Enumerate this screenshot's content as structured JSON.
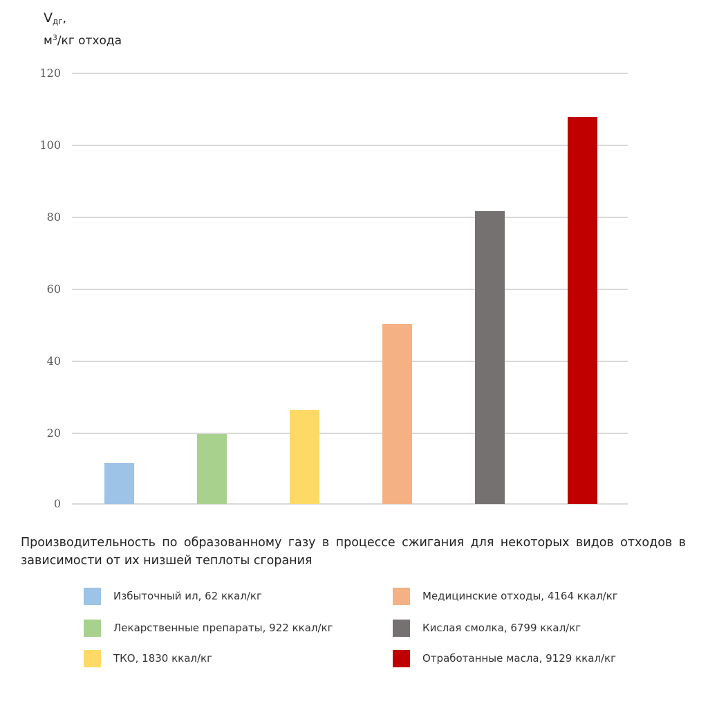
{
  "chart_data": {
    "type": "bar",
    "title": "Производительность по образованному  газу в процессе сжигания для некоторых видов отходов в зависимости от их низшей теплоты сгорания",
    "ylabel_line1": "V",
    "ylabel_sub": "дг",
    "ylabel_comma": ",",
    "ylabel_line2_pre": "м",
    "ylabel_line2_sup": "3",
    "ylabel_line2_post": "/кг отхода",
    "xlabel": "",
    "ylim": [
      0,
      120
    ],
    "yticks": [
      "0",
      "20",
      "40",
      "60",
      "80",
      "100",
      "120"
    ],
    "grid": true,
    "legend_position": "bottom",
    "categories": [
      "Избыточный ил, 62 ккал/кг",
      "Лекарственные препараты, 922 ккал/кг",
      "ТКО, 1830 ккал/кг",
      "Медицинские отходы, 4164 ккал/кг",
      "Кислая смолка, 6799 ккал/кг",
      "Отработанные масла, 9129 ккал/кг"
    ],
    "values": [
      11.3,
      19.4,
      26.3,
      50.2,
      81.7,
      107.9
    ],
    "colors": [
      "#9dc3e6",
      "#a9d18e",
      "#ffd966",
      "#f4b183",
      "#767171",
      "#c00000"
    ]
  },
  "legend": {
    "items": [
      {
        "label": "Избыточный ил, 62 ккал/кг",
        "color": "#9dc3e6"
      },
      {
        "label": "Лекарственные препараты, 922 ккал/кг",
        "color": "#a9d18e"
      },
      {
        "label": "ТКО, 1830 ккал/кг",
        "color": "#ffd966"
      },
      {
        "label": "Медицинские отходы, 4164 ккал/кг",
        "color": "#f4b183"
      },
      {
        "label": "Кислая смолка, 6799 ккал/кг",
        "color": "#767171"
      },
      {
        "label": "Отработанные масла, 9129 ккал/кг",
        "color": "#c00000"
      }
    ]
  }
}
